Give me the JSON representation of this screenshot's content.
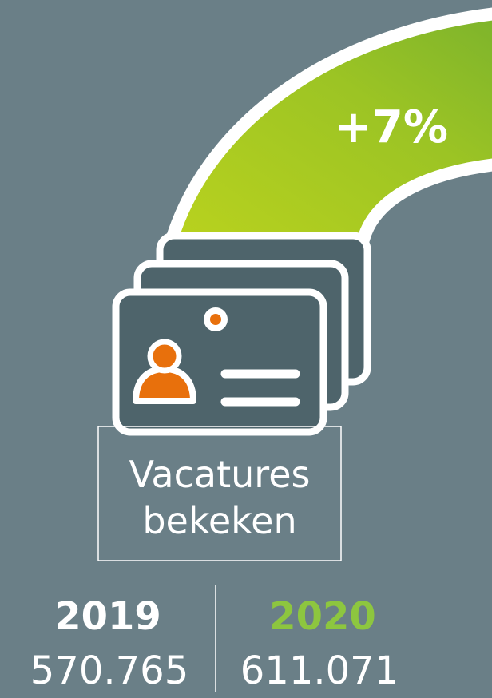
{
  "badge": "+7%",
  "label": {
    "line1": "Vacatures",
    "line2": "bekeken"
  },
  "stats": [
    {
      "year": "2019",
      "value": "570.765"
    },
    {
      "year": "2020",
      "value": "611.071"
    }
  ]
}
